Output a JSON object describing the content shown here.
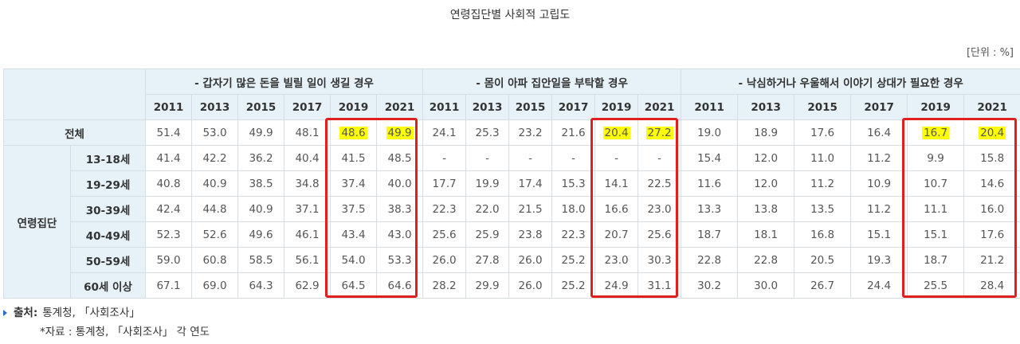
{
  "title": "연령집단별 사회적 고립도",
  "unit": "[단위 : %]",
  "groups": [
    "- 갑자기 많은 돈을 빌릴 일이 생길 경우",
    "- 몸이 아파 집안일을 부탁할 경우",
    "- 낙심하거나 우울해서 이야기 상대가 필요한 경우"
  ],
  "years": [
    "2011",
    "2013",
    "2015",
    "2017",
    "2019",
    "2021"
  ],
  "category_label": "연령집단",
  "rows": [
    {
      "label": "전체",
      "values": [
        "51.4",
        "53.0",
        "49.9",
        "48.1",
        "48.6",
        "49.9",
        "24.1",
        "25.3",
        "23.2",
        "21.6",
        "20.4",
        "27.2",
        "19.0",
        "18.9",
        "17.6",
        "16.4",
        "16.7",
        "20.4"
      ]
    },
    {
      "label": "13-18세",
      "values": [
        "41.4",
        "42.2",
        "36.2",
        "40.4",
        "41.5",
        "48.5",
        "-",
        "-",
        "-",
        "-",
        "-",
        "-",
        "15.4",
        "12.0",
        "11.0",
        "11.2",
        "9.9",
        "15.8"
      ]
    },
    {
      "label": "19-29세",
      "values": [
        "40.8",
        "40.9",
        "38.5",
        "34.8",
        "37.4",
        "40.0",
        "17.7",
        "19.9",
        "17.4",
        "15.3",
        "14.1",
        "22.5",
        "11.6",
        "12.0",
        "11.2",
        "10.9",
        "10.7",
        "14.6"
      ]
    },
    {
      "label": "30-39세",
      "values": [
        "42.4",
        "44.8",
        "40.9",
        "37.1",
        "37.5",
        "38.3",
        "22.3",
        "22.0",
        "21.5",
        "18.0",
        "16.6",
        "23.0",
        "13.3",
        "13.8",
        "13.5",
        "11.2",
        "11.1",
        "16.0"
      ]
    },
    {
      "label": "40-49세",
      "values": [
        "52.3",
        "52.6",
        "49.6",
        "46.1",
        "43.4",
        "43.0",
        "25.6",
        "25.9",
        "23.8",
        "22.3",
        "20.7",
        "25.6",
        "18.7",
        "18.1",
        "16.8",
        "15.1",
        "15.1",
        "17.6"
      ]
    },
    {
      "label": "50-59세",
      "values": [
        "59.0",
        "60.8",
        "58.5",
        "56.1",
        "54.0",
        "53.3",
        "26.0",
        "27.8",
        "26.0",
        "25.2",
        "23.0",
        "30.3",
        "22.8",
        "22.8",
        "20.5",
        "19.3",
        "18.7",
        "21.2"
      ]
    },
    {
      "label": "60세 이상",
      "values": [
        "67.1",
        "69.0",
        "64.3",
        "62.9",
        "64.5",
        "64.6",
        "28.2",
        "29.9",
        "26.0",
        "25.2",
        "24.9",
        "31.1",
        "30.2",
        "30.0",
        "26.7",
        "24.4",
        "25.5",
        "28.4"
      ]
    }
  ],
  "highlight_color": "#ffff00",
  "box_color": "#e11f1f",
  "notes": {
    "source_label": "출처:",
    "source_text": "통계청, 「사회조사」",
    "data_text": "*자료 : 통계청, 「사회조사」 각 연도"
  }
}
